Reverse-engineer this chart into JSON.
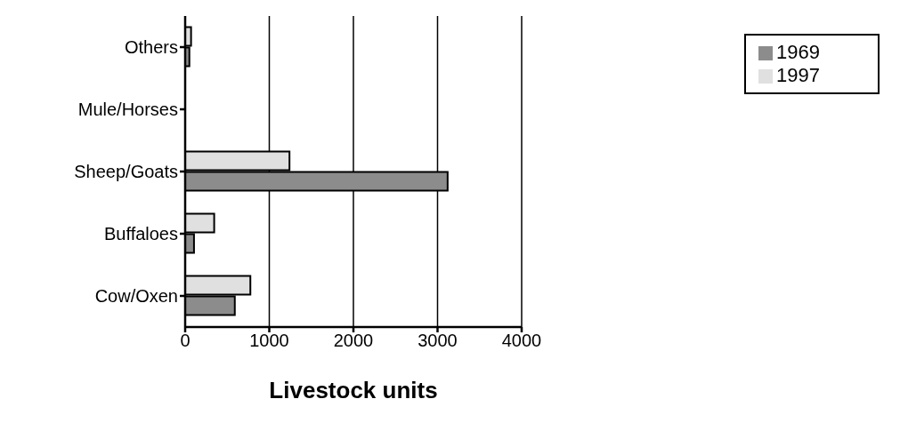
{
  "chart_data": {
    "type": "bar",
    "orientation": "horizontal",
    "xlabel": "Livestock units",
    "categories": [
      "Others",
      "Mule/Horses",
      "Sheep/Goats",
      "Buffaloes",
      "Cow/Oxen"
    ],
    "series": [
      {
        "name": "1997",
        "color": "#e0e0e0",
        "values": [
          70,
          null,
          1240,
          345,
          775
        ]
      },
      {
        "name": "1969",
        "color": "#8c8c8c",
        "values": [
          50,
          null,
          3120,
          105,
          590
        ]
      }
    ],
    "xlim": [
      0,
      4000
    ],
    "xticks": [
      0,
      1000,
      2000,
      3000,
      4000
    ],
    "grid": "x",
    "legend": "top right"
  }
}
